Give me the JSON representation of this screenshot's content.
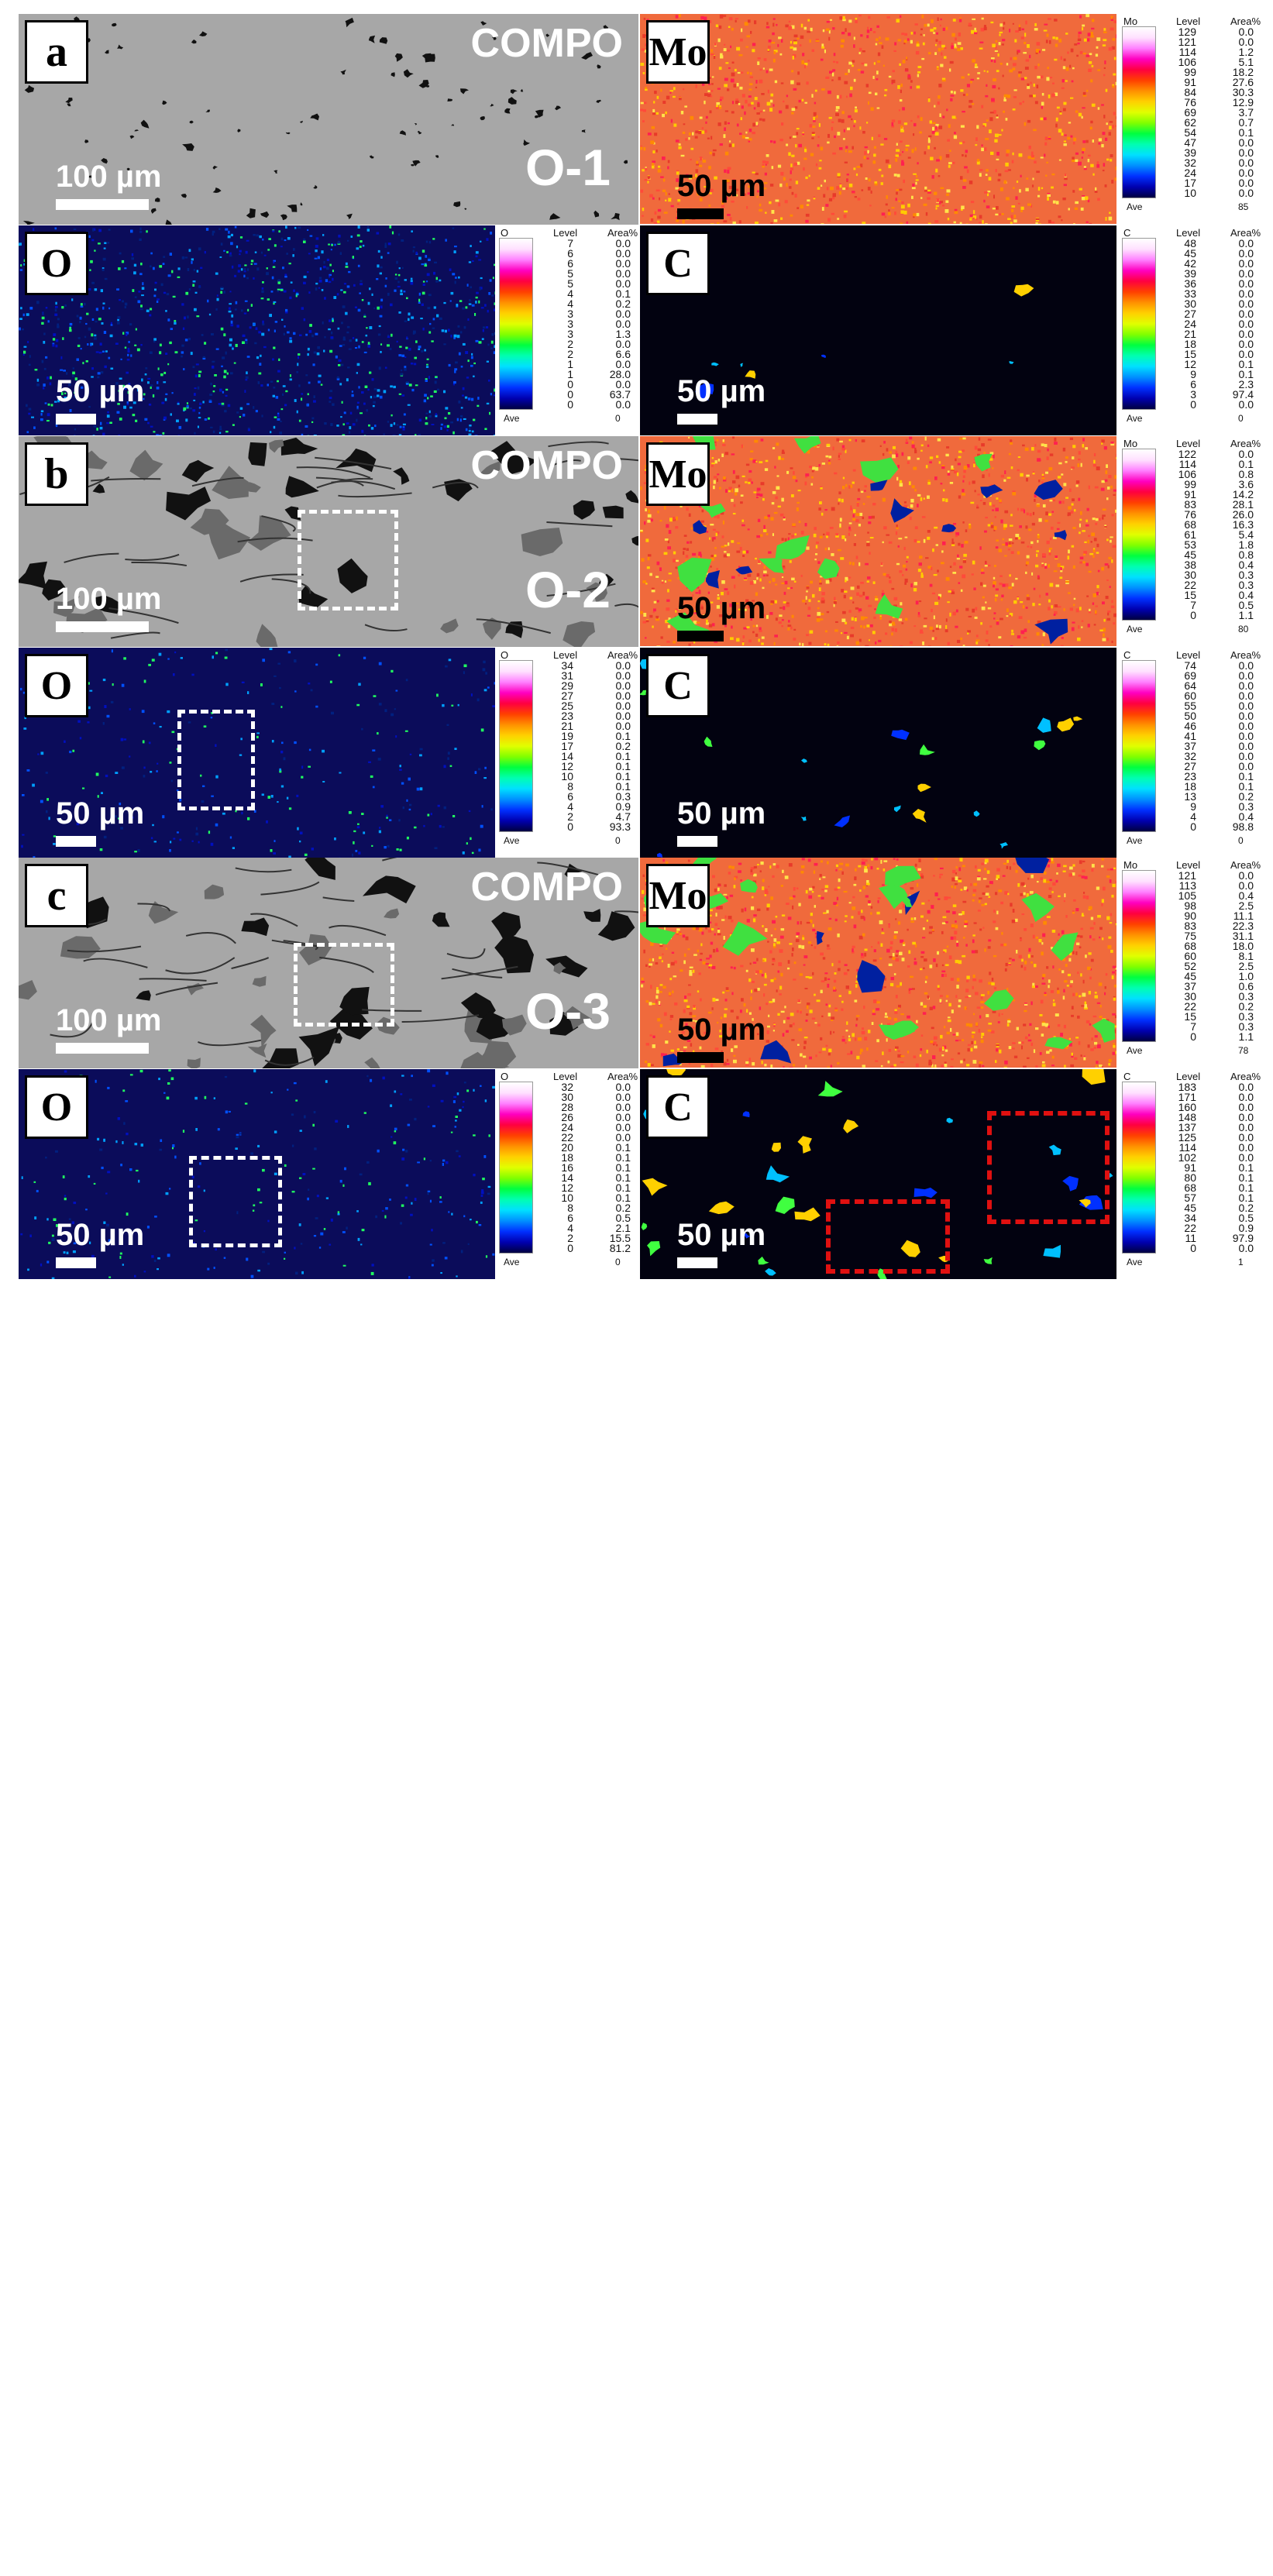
{
  "panels": [
    {
      "letter": "a",
      "compo": "COMPO",
      "sample": "O-1",
      "compo_scale": "100 µm",
      "maps": [
        {
          "element": "Mo",
          "scale": "50 µm",
          "hdr": [
            "Mo",
            "Level",
            "Area%"
          ],
          "levels": [
            "129",
            "121",
            "114",
            "106",
            "99",
            "91",
            "84",
            "76",
            "69",
            "62",
            "54",
            "47",
            "39",
            "32",
            "24",
            "17",
            "10"
          ],
          "areas": [
            "0.0",
            "0.0",
            "1.2",
            "5.1",
            "18.2",
            "27.6",
            "30.3",
            "12.9",
            "3.7",
            "0.7",
            "0.1",
            "0.0",
            "0.0",
            "0.0",
            "0.0",
            "0.0",
            "0.0"
          ],
          "ave": "Ave",
          "ave_val": "85"
        },
        {
          "element": "O",
          "scale": "50 µm",
          "hdr": [
            "O",
            "Level",
            "Area%"
          ],
          "levels": [
            "7",
            "6",
            "6",
            "5",
            "5",
            "4",
            "4",
            "3",
            "3",
            "3",
            "2",
            "2",
            "1",
            "1",
            "0",
            "0",
            "0"
          ],
          "areas": [
            "0.0",
            "0.0",
            "0.0",
            "0.0",
            "0.0",
            "0.1",
            "0.2",
            "0.0",
            "0.0",
            "1.3",
            "0.0",
            "6.6",
            "0.0",
            "28.0",
            "0.0",
            "63.7",
            "0.0"
          ],
          "ave": "Ave",
          "ave_val": "0"
        },
        {
          "element": "C",
          "scale": "50 µm",
          "hdr": [
            "C",
            "Level",
            "Area%"
          ],
          "levels": [
            "48",
            "45",
            "42",
            "39",
            "36",
            "33",
            "30",
            "27",
            "24",
            "21",
            "18",
            "15",
            "12",
            "9",
            "6",
            "3",
            "0"
          ],
          "areas": [
            "0.0",
            "0.0",
            "0.0",
            "0.0",
            "0.0",
            "0.0",
            "0.0",
            "0.0",
            "0.0",
            "0.0",
            "0.0",
            "0.0",
            "0.1",
            "0.1",
            "2.3",
            "97.4",
            "0.0"
          ],
          "ave": "Ave",
          "ave_val": "0"
        }
      ]
    },
    {
      "letter": "b",
      "compo": "COMPO",
      "sample": "O-2",
      "compo_scale": "100 µm",
      "maps": [
        {
          "element": "Mo",
          "scale": "50 µm",
          "hdr": [
            "Mo",
            "Level",
            "Area%"
          ],
          "levels": [
            "122",
            "114",
            "106",
            "99",
            "91",
            "83",
            "76",
            "68",
            "61",
            "53",
            "45",
            "38",
            "30",
            "22",
            "15",
            "7",
            "0"
          ],
          "areas": [
            "0.0",
            "0.1",
            "0.8",
            "3.6",
            "14.2",
            "28.1",
            "26.0",
            "16.3",
            "5.4",
            "1.8",
            "0.8",
            "0.4",
            "0.3",
            "0.3",
            "0.4",
            "0.5",
            "1.1"
          ],
          "ave": "Ave",
          "ave_val": "80"
        },
        {
          "element": "O",
          "scale": "50 µm",
          "hdr": [
            "O",
            "Level",
            "Area%"
          ],
          "levels": [
            "34",
            "31",
            "29",
            "27",
            "25",
            "23",
            "21",
            "19",
            "17",
            "14",
            "12",
            "10",
            "8",
            "6",
            "4",
            "2",
            "0"
          ],
          "areas": [
            "0.0",
            "0.0",
            "0.0",
            "0.0",
            "0.0",
            "0.0",
            "0.0",
            "0.1",
            "0.2",
            "0.1",
            "0.1",
            "0.1",
            "0.1",
            "0.3",
            "0.9",
            "4.7",
            "93.3"
          ],
          "ave": "Ave",
          "ave_val": "0"
        },
        {
          "element": "C",
          "scale": "50 µm",
          "hdr": [
            "C",
            "Level",
            "Area%"
          ],
          "levels": [
            "74",
            "69",
            "64",
            "60",
            "55",
            "50",
            "46",
            "41",
            "37",
            "32",
            "27",
            "23",
            "18",
            "13",
            "9",
            "4",
            "0"
          ],
          "areas": [
            "0.0",
            "0.0",
            "0.0",
            "0.0",
            "0.0",
            "0.0",
            "0.0",
            "0.0",
            "0.0",
            "0.0",
            "0.0",
            "0.1",
            "0.1",
            "0.2",
            "0.3",
            "0.4",
            "98.8"
          ],
          "ave": "Ave",
          "ave_val": "0"
        }
      ]
    },
    {
      "letter": "c",
      "compo": "COMPO",
      "sample": "O-3",
      "compo_scale": "100 µm",
      "maps": [
        {
          "element": "Mo",
          "scale": "50 µm",
          "hdr": [
            "Mo",
            "Level",
            "Area%"
          ],
          "levels": [
            "121",
            "113",
            "105",
            "98",
            "90",
            "83",
            "75",
            "68",
            "60",
            "52",
            "45",
            "37",
            "30",
            "22",
            "15",
            "7",
            "0"
          ],
          "areas": [
            "0.0",
            "0.0",
            "0.4",
            "2.5",
            "11.1",
            "22.3",
            "31.1",
            "18.0",
            "8.1",
            "2.5",
            "1.0",
            "0.6",
            "0.3",
            "0.2",
            "0.3",
            "0.3",
            "1.1"
          ],
          "ave": "Ave",
          "ave_val": "78"
        },
        {
          "element": "O",
          "scale": "50 µm",
          "hdr": [
            "O",
            "Level",
            "Area%"
          ],
          "levels": [
            "32",
            "30",
            "28",
            "26",
            "24",
            "22",
            "20",
            "18",
            "16",
            "14",
            "12",
            "10",
            "8",
            "6",
            "4",
            "2",
            "0"
          ],
          "areas": [
            "0.0",
            "0.0",
            "0.0",
            "0.0",
            "0.0",
            "0.0",
            "0.1",
            "0.1",
            "0.1",
            "0.1",
            "0.1",
            "0.1",
            "0.2",
            "0.5",
            "2.1",
            "15.5",
            "81.2"
          ],
          "ave": "Ave",
          "ave_val": "0"
        },
        {
          "element": "C",
          "scale": "50 µm",
          "hdr": [
            "C",
            "Level",
            "Area%"
          ],
          "levels": [
            "183",
            "171",
            "160",
            "148",
            "137",
            "125",
            "114",
            "102",
            "91",
            "80",
            "68",
            "57",
            "45",
            "34",
            "22",
            "11",
            "0"
          ],
          "areas": [
            "0.0",
            "0.0",
            "0.0",
            "0.0",
            "0.0",
            "0.0",
            "0.0",
            "0.0",
            "0.1",
            "0.1",
            "0.1",
            "0.1",
            "0.2",
            "0.5",
            "0.9",
            "97.9",
            "0.0"
          ],
          "ave": "Ave",
          "ave_val": "1"
        }
      ]
    }
  ],
  "colors": {
    "compo_bg": "#a7a7a7",
    "mo_map": "#f06a3c",
    "o_map": "#0b0c5a",
    "c_map": "#020210",
    "highlight_box": "#ffffff",
    "carbide_box": "#e01010"
  }
}
